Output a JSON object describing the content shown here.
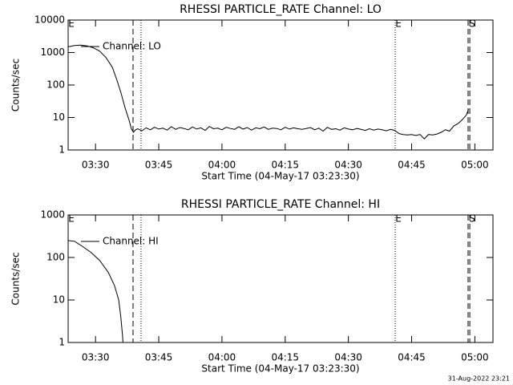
{
  "chart_data": [
    {
      "type": "line",
      "title": "RHESSI PARTICLE_RATE Channel: LO",
      "xlabel": "Start Time (04-May-17 03:23:30)",
      "ylabel": "Counts/sec",
      "log_y": true,
      "ylim": [
        1,
        10000
      ],
      "yticks": [
        1,
        10,
        100,
        1000,
        10000
      ],
      "xlim": [
        23.5,
        124.3
      ],
      "xticks": [
        {
          "value": 30,
          "label": "03:30"
        },
        {
          "value": 45,
          "label": "03:45"
        },
        {
          "value": 60,
          "label": "04:00"
        },
        {
          "value": 75,
          "label": "04:15"
        },
        {
          "value": 90,
          "label": "04:30"
        },
        {
          "value": 105,
          "label": "04:45"
        },
        {
          "value": 120,
          "label": "05:00"
        }
      ],
      "vlines": [
        {
          "x": 38.9,
          "style": "dashed"
        },
        {
          "x": 40.8,
          "style": "dotted"
        },
        {
          "x": 101.1,
          "style": "dotted"
        },
        {
          "x": 118.4,
          "style": "dashed"
        },
        {
          "x": 118.8,
          "style": "dashed"
        }
      ],
      "annotations": [
        {
          "text": "E",
          "x": 23.5
        },
        {
          "text": "E",
          "x": 101.1
        },
        {
          "text": "S",
          "x": 118.6
        }
      ],
      "series": [
        {
          "name": "Channel: LO",
          "color": "#000000",
          "x": [
            23.5,
            25,
            26.5,
            28,
            29.5,
            31,
            32.5,
            34,
            35,
            36,
            37,
            38,
            38.5,
            39,
            39.5,
            40,
            41,
            42,
            43,
            44,
            45,
            46,
            47,
            48,
            49,
            50,
            51,
            52,
            53,
            54,
            55,
            56,
            57,
            58,
            59,
            60,
            61,
            62,
            63,
            64,
            65,
            66,
            67,
            68,
            69,
            70,
            71,
            72,
            73,
            74,
            75,
            76,
            77,
            78,
            79,
            80,
            81,
            82,
            83,
            84,
            85,
            86,
            87,
            88,
            89,
            90,
            91,
            92,
            93,
            94,
            95,
            96,
            97,
            98,
            99,
            100,
            101,
            102,
            103,
            104,
            105,
            106,
            107,
            108,
            109,
            110,
            111,
            112,
            113,
            114,
            115,
            116,
            117,
            118,
            118.5
          ],
          "values": [
            1500,
            1650,
            1700,
            1600,
            1400,
            1100,
            700,
            350,
            150,
            60,
            20,
            8,
            4.5,
            3.5,
            4.2,
            4.5,
            3.9,
            4.8,
            4.2,
            5.0,
            4.4,
            4.7,
            4.1,
            5.2,
            4.3,
            4.9,
            4.6,
            4.2,
            5.1,
            4.4,
            4.8,
            4.0,
            5.3,
            4.5,
            4.7,
            4.2,
            5.0,
            4.6,
            4.3,
            5.2,
            4.4,
            4.9,
            4.1,
            4.8,
            4.5,
            5.1,
            4.3,
            4.7,
            4.6,
            4.2,
            5.0,
            4.4,
            4.8,
            4.5,
            4.3,
            4.6,
            4.9,
            4.2,
            4.7,
            3.8,
            5.0,
            4.3,
            4.5,
            4.1,
            4.8,
            4.4,
            4.2,
            4.6,
            4.3,
            4.0,
            4.5,
            4.1,
            4.4,
            4.2,
            3.9,
            4.3,
            4.0,
            3.2,
            3.0,
            2.9,
            3.0,
            2.8,
            3.0,
            2.2,
            3.0,
            2.9,
            3.1,
            3.5,
            4.2,
            3.8,
            5.5,
            6.5,
            8.5,
            12,
            18
          ]
        }
      ]
    },
    {
      "type": "line",
      "title": "RHESSI PARTICLE_RATE Channel: HI",
      "xlabel": "Start Time (04-May-17 03:23:30)",
      "ylabel": "Counts/sec",
      "log_y": true,
      "ylim": [
        1,
        1000
      ],
      "yticks": [
        1,
        10,
        100,
        1000
      ],
      "xlim": [
        23.5,
        124.3
      ],
      "xticks": [
        {
          "value": 30,
          "label": "03:30"
        },
        {
          "value": 45,
          "label": "03:45"
        },
        {
          "value": 60,
          "label": "04:00"
        },
        {
          "value": 75,
          "label": "04:15"
        },
        {
          "value": 90,
          "label": "04:30"
        },
        {
          "value": 105,
          "label": "04:45"
        },
        {
          "value": 120,
          "label": "05:00"
        }
      ],
      "vlines": [
        {
          "x": 38.9,
          "style": "dashed"
        },
        {
          "x": 40.8,
          "style": "dotted"
        },
        {
          "x": 101.1,
          "style": "dotted"
        },
        {
          "x": 118.4,
          "style": "dashed"
        },
        {
          "x": 118.8,
          "style": "dashed"
        }
      ],
      "annotations": [
        {
          "text": "E",
          "x": 23.5
        },
        {
          "text": "E",
          "x": 101.1
        },
        {
          "text": "S",
          "x": 118.6
        }
      ],
      "series": [
        {
          "name": "Channel: HI",
          "color": "#000000",
          "x": [
            23.5,
            25,
            27,
            29,
            31,
            33,
            34.5,
            35.5,
            36,
            36.4,
            36.5
          ],
          "values": [
            250,
            240,
            180,
            130,
            85,
            45,
            22,
            10,
            4,
            1.5,
            1
          ]
        }
      ]
    }
  ],
  "footer": "31-Aug-2022 23:21"
}
